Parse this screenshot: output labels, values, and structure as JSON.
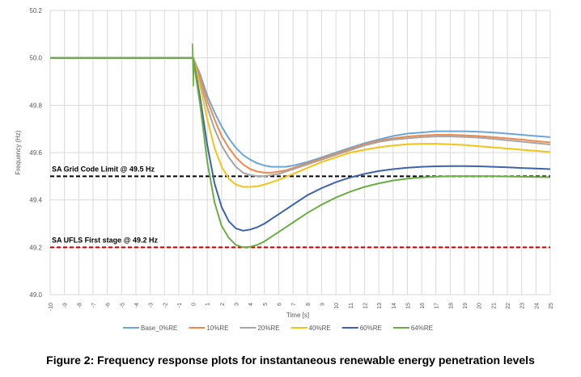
{
  "figure_caption": "Figure 2: Frequency response plots for instantaneous renewable energy penetration levels",
  "chart_data": {
    "type": "line",
    "title": "",
    "xlabel": "Time [s]",
    "ylabel": "Frequency (Hz)",
    "xlim": [
      -10,
      25
    ],
    "ylim": [
      49.0,
      50.2
    ],
    "x_ticks": [
      "-10",
      "-9",
      "-8",
      "-7",
      "-6",
      "-5",
      "-4",
      "-3",
      "-2",
      "-1",
      "0",
      "1",
      "2",
      "3",
      "4",
      "5",
      "6",
      "7",
      "8",
      "9",
      "10",
      "11",
      "12",
      "13",
      "14",
      "15",
      "16",
      "17",
      "18",
      "19",
      "20",
      "21",
      "22",
      "23",
      "24",
      "25"
    ],
    "y_ticks": [
      "49.0",
      "49.2",
      "49.4",
      "49.6",
      "49.8",
      "50.0",
      "50.2"
    ],
    "grid": true,
    "legend_position": "bottom",
    "series": [
      {
        "name": "Base_0%RE",
        "color": "#6aa6d8",
        "x": [
          -10,
          0,
          0.5,
          1,
          1.5,
          2,
          2.5,
          3,
          3.5,
          4,
          4.5,
          5,
          5.5,
          6,
          6.5,
          7,
          8,
          9,
          10,
          11,
          12,
          13,
          14,
          15,
          16,
          17,
          18,
          19,
          20,
          21,
          22,
          23,
          24,
          25
        ],
        "y": [
          50.0,
          50.0,
          49.93,
          49.84,
          49.77,
          49.71,
          49.66,
          49.62,
          49.59,
          49.57,
          49.555,
          49.545,
          49.54,
          49.54,
          49.54,
          49.545,
          49.56,
          49.58,
          49.6,
          49.62,
          49.64,
          49.655,
          49.67,
          49.68,
          49.685,
          49.69,
          49.69,
          49.69,
          49.688,
          49.685,
          49.68,
          49.675,
          49.67,
          49.665
        ]
      },
      {
        "name": "10%RE",
        "color": "#ed8a4c",
        "x": [
          -10,
          0,
          0.5,
          1,
          1.5,
          2,
          2.5,
          3,
          3.5,
          4,
          4.5,
          5,
          5.5,
          6,
          6.5,
          7,
          8,
          9,
          10,
          11,
          12,
          13,
          14,
          15,
          16,
          17,
          18,
          19,
          20,
          21,
          22,
          23,
          24,
          25
        ],
        "y": [
          50.0,
          50.0,
          49.92,
          49.82,
          49.74,
          49.67,
          49.62,
          49.58,
          49.55,
          49.53,
          49.52,
          49.515,
          49.515,
          49.52,
          49.525,
          49.535,
          49.555,
          49.575,
          49.595,
          49.615,
          49.635,
          49.65,
          49.66,
          49.668,
          49.672,
          49.675,
          49.675,
          49.673,
          49.67,
          49.665,
          49.66,
          49.655,
          49.648,
          49.643
        ]
      },
      {
        "name": "20%RE",
        "color": "#a5a5a5",
        "x": [
          -10,
          0,
          0.5,
          1,
          1.5,
          2,
          2.5,
          3,
          3.5,
          4,
          4.5,
          5,
          5.5,
          6,
          6.5,
          7,
          8,
          9,
          10,
          11,
          12,
          13,
          14,
          15,
          16,
          17,
          18,
          19,
          20,
          21,
          22,
          23,
          24,
          25
        ],
        "y": [
          50.0,
          50.0,
          49.9,
          49.79,
          49.7,
          49.63,
          49.58,
          49.54,
          49.515,
          49.505,
          49.5,
          49.5,
          49.505,
          49.51,
          49.52,
          49.53,
          49.55,
          49.57,
          49.59,
          49.61,
          49.63,
          49.645,
          49.655,
          49.66,
          49.665,
          49.668,
          49.668,
          49.666,
          49.663,
          49.658,
          49.652,
          49.646,
          49.64,
          49.634
        ]
      },
      {
        "name": "40%RE",
        "color": "#f5c218",
        "x": [
          -10,
          0,
          0.5,
          1,
          1.5,
          2,
          2.5,
          3,
          3.5,
          4,
          4.5,
          5,
          5.5,
          6,
          6.5,
          7,
          8,
          9,
          10,
          11,
          12,
          13,
          14,
          15,
          16,
          17,
          18,
          19,
          20,
          21,
          22,
          23,
          24,
          25
        ],
        "y": [
          50.0,
          50.0,
          49.88,
          49.74,
          49.62,
          49.54,
          49.49,
          49.465,
          49.455,
          49.455,
          49.458,
          49.465,
          49.475,
          49.485,
          49.497,
          49.51,
          49.535,
          49.56,
          49.58,
          49.6,
          49.612,
          49.622,
          49.63,
          49.635,
          49.637,
          49.637,
          49.635,
          49.632,
          49.627,
          49.622,
          49.617,
          49.612,
          49.607,
          49.602
        ]
      },
      {
        "name": "60%RE",
        "color": "#3d63a8",
        "x": [
          -10,
          0,
          0.5,
          1,
          1.5,
          2,
          2.5,
          3,
          3.5,
          4,
          4.5,
          5,
          5.5,
          6,
          6.5,
          7,
          8,
          9,
          10,
          11,
          12,
          13,
          14,
          15,
          16,
          17,
          18,
          19,
          20,
          21,
          22,
          23,
          24,
          25
        ],
        "y": [
          50.0,
          50.0,
          49.83,
          49.63,
          49.47,
          49.37,
          49.31,
          49.28,
          49.27,
          49.275,
          49.285,
          49.3,
          49.32,
          49.34,
          49.36,
          49.38,
          49.42,
          49.45,
          49.475,
          49.495,
          49.51,
          49.522,
          49.53,
          49.536,
          49.54,
          49.542,
          49.543,
          49.543,
          49.542,
          49.54,
          49.538,
          49.535,
          49.533,
          49.53
        ]
      },
      {
        "name": "64%RE",
        "color": "#6aae45",
        "x": [
          -10,
          0,
          0.5,
          1,
          1.5,
          2,
          2.5,
          3,
          3.5,
          4,
          4.5,
          5,
          5.5,
          6,
          6.5,
          7,
          8,
          9,
          10,
          11,
          12,
          13,
          14,
          15,
          16,
          17,
          18,
          19,
          20,
          21,
          22,
          23,
          24,
          25
        ],
        "y": [
          50.0,
          50.0,
          49.8,
          49.56,
          49.39,
          49.29,
          49.24,
          49.21,
          49.2,
          49.202,
          49.21,
          49.225,
          49.245,
          49.265,
          49.285,
          49.305,
          49.345,
          49.38,
          49.41,
          49.435,
          49.455,
          49.47,
          49.482,
          49.49,
          49.495,
          49.498,
          49.5,
          49.5,
          49.5,
          49.5,
          49.499,
          49.498,
          49.497,
          49.496
        ]
      }
    ],
    "reference_lines": [
      {
        "label": "SA Grid Code Limit  @ 49.5 Hz",
        "y": 49.5,
        "color": "#000000",
        "style": "dashed"
      },
      {
        "label": "SA UFLS First stage  @ 49.2 Hz",
        "y": 49.2,
        "color": "#c00000",
        "style": "dashed"
      }
    ]
  }
}
